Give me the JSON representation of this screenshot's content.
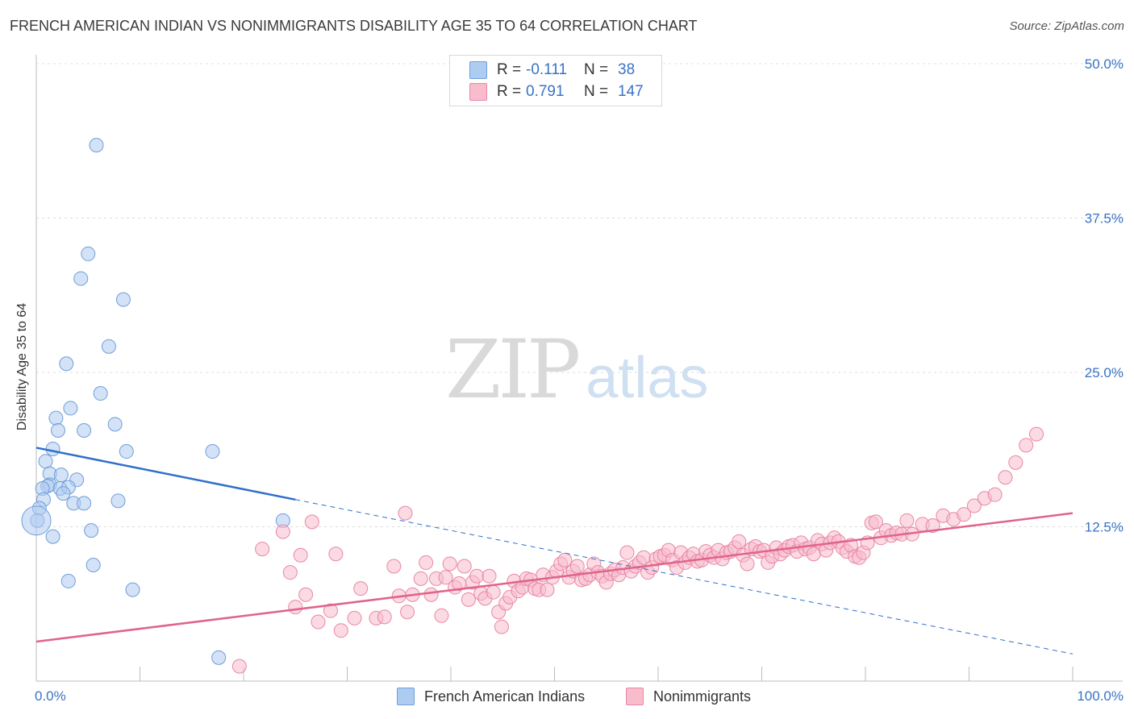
{
  "header": {
    "title": "FRENCH AMERICAN INDIAN VS NONIMMIGRANTS DISABILITY AGE 35 TO 64 CORRELATION CHART",
    "source": "Source: ZipAtlas.com"
  },
  "watermark": {
    "zip": "ZIP",
    "atlas": "atlas"
  },
  "legend": {
    "rows": [
      {
        "r_label": "R =",
        "r_value": "-0.111",
        "n_label": "N =",
        "n_value": "38",
        "color": "#aecbf0",
        "edge": "#6f9fd8"
      },
      {
        "r_label": "R =",
        "r_value": "0.791",
        "n_label": "N =",
        "n_value": "147",
        "color": "#f8bccd",
        "edge": "#e887a5"
      }
    ]
  },
  "bottom_legend": [
    {
      "label": "French American Indians",
      "color": "#aecbf0",
      "edge": "#6f9fd8"
    },
    {
      "label": "Nonimmigrants",
      "color": "#f8bccd",
      "edge": "#e887a5"
    }
  ],
  "chart_data": {
    "type": "scatter",
    "xlabel": "",
    "ylabel": "Disability Age 35 to 64",
    "xlim": [
      0,
      100
    ],
    "ylim": [
      0,
      50
    ],
    "x_tick_labels": [
      "0.0%",
      "100.0%"
    ],
    "y_ticks": [
      12.5,
      25.0,
      37.5,
      50.0
    ],
    "y_tick_labels": [
      "12.5%",
      "25.0%",
      "37.5%",
      "50.0%"
    ],
    "grid": true,
    "series": [
      {
        "name": "French American Indians",
        "color": "#aecbf0",
        "edge": "#6f9fd8",
        "trend": {
          "x0": 0,
          "y0": 18.9,
          "x1": 25,
          "y1": 14.7,
          "dash_x1": 100,
          "dash_y1": 2.2,
          "color": "#2f6fcb"
        },
        "points": [
          [
            5.8,
            43.4
          ],
          [
            5.0,
            34.6
          ],
          [
            4.3,
            32.6
          ],
          [
            8.4,
            30.9
          ],
          [
            7.0,
            27.1
          ],
          [
            2.9,
            25.7
          ],
          [
            6.2,
            23.3
          ],
          [
            3.3,
            22.1
          ],
          [
            1.9,
            21.3
          ],
          [
            7.6,
            20.8
          ],
          [
            2.1,
            20.3
          ],
          [
            4.6,
            20.3
          ],
          [
            1.6,
            18.8
          ],
          [
            8.7,
            18.6
          ],
          [
            17.0,
            18.6
          ],
          [
            0.9,
            17.8
          ],
          [
            1.3,
            16.8
          ],
          [
            2.4,
            16.7
          ],
          [
            3.9,
            16.3
          ],
          [
            1.3,
            15.9
          ],
          [
            1.1,
            15.8
          ],
          [
            0.6,
            15.6
          ],
          [
            2.3,
            15.6
          ],
          [
            3.1,
            15.7
          ],
          [
            2.6,
            15.2
          ],
          [
            0.7,
            14.7
          ],
          [
            3.6,
            14.4
          ],
          [
            4.6,
            14.4
          ],
          [
            7.9,
            14.6
          ],
          [
            0.3,
            14.0
          ],
          [
            0.1,
            13.0
          ],
          [
            23.8,
            13.0
          ],
          [
            5.3,
            12.2
          ],
          [
            1.6,
            11.7
          ],
          [
            5.5,
            9.4
          ],
          [
            3.1,
            8.1
          ],
          [
            9.3,
            7.4
          ],
          [
            17.6,
            1.9
          ]
        ]
      },
      {
        "name": "Nonimmigrants",
        "color": "#f8bccd",
        "edge": "#e887a5",
        "trend": {
          "x0": 0,
          "y0": 3.2,
          "x1": 100,
          "y1": 13.6,
          "color": "#e0648a"
        },
        "points": [
          [
            19.6,
            1.2
          ],
          [
            21.8,
            10.7
          ],
          [
            23.8,
            12.1
          ],
          [
            24.5,
            8.8
          ],
          [
            25.0,
            6.0
          ],
          [
            25.5,
            10.2
          ],
          [
            26.0,
            7.0
          ],
          [
            26.6,
            12.9
          ],
          [
            27.2,
            4.8
          ],
          [
            28.4,
            5.7
          ],
          [
            28.9,
            10.3
          ],
          [
            29.4,
            4.1
          ],
          [
            30.7,
            5.1
          ],
          [
            31.3,
            7.5
          ],
          [
            32.8,
            5.1
          ],
          [
            33.6,
            5.2
          ],
          [
            34.5,
            9.3
          ],
          [
            35.0,
            6.9
          ],
          [
            35.6,
            13.6
          ],
          [
            35.8,
            5.6
          ],
          [
            36.3,
            7.0
          ],
          [
            37.1,
            8.3
          ],
          [
            37.6,
            9.6
          ],
          [
            38.1,
            7.0
          ],
          [
            38.6,
            8.3
          ],
          [
            39.1,
            5.3
          ],
          [
            39.5,
            8.4
          ],
          [
            39.9,
            9.5
          ],
          [
            40.4,
            7.6
          ],
          [
            40.8,
            7.9
          ],
          [
            41.3,
            9.3
          ],
          [
            41.7,
            6.6
          ],
          [
            42.1,
            8.0
          ],
          [
            42.5,
            8.5
          ],
          [
            42.9,
            7.1
          ],
          [
            43.3,
            6.7
          ],
          [
            43.7,
            8.5
          ],
          [
            44.1,
            7.2
          ],
          [
            44.6,
            5.6
          ],
          [
            44.9,
            4.4
          ],
          [
            45.3,
            6.3
          ],
          [
            45.7,
            6.8
          ],
          [
            46.1,
            8.1
          ],
          [
            46.5,
            7.3
          ],
          [
            46.9,
            7.6
          ],
          [
            47.3,
            8.3
          ],
          [
            47.7,
            8.2
          ],
          [
            48.1,
            7.5
          ],
          [
            48.5,
            7.4
          ],
          [
            48.9,
            8.6
          ],
          [
            49.3,
            7.4
          ],
          [
            49.8,
            8.4
          ],
          [
            50.2,
            8.9
          ],
          [
            50.6,
            9.5
          ],
          [
            51.0,
            9.8
          ],
          [
            51.4,
            8.4
          ],
          [
            51.8,
            8.9
          ],
          [
            52.2,
            9.3
          ],
          [
            52.6,
            8.2
          ],
          [
            53.0,
            8.3
          ],
          [
            53.4,
            8.6
          ],
          [
            53.8,
            9.5
          ],
          [
            54.2,
            8.8
          ],
          [
            54.6,
            8.5
          ],
          [
            55.0,
            8.0
          ],
          [
            55.4,
            8.7
          ],
          [
            55.8,
            9.0
          ],
          [
            56.2,
            8.6
          ],
          [
            56.6,
            9.2
          ],
          [
            57.0,
            10.4
          ],
          [
            57.4,
            8.9
          ],
          [
            57.8,
            9.3
          ],
          [
            58.2,
            9.6
          ],
          [
            58.6,
            10.0
          ],
          [
            59.0,
            8.8
          ],
          [
            59.4,
            9.2
          ],
          [
            59.8,
            9.9
          ],
          [
            60.2,
            10.1
          ],
          [
            60.6,
            10.2
          ],
          [
            61.0,
            10.6
          ],
          [
            61.4,
            9.8
          ],
          [
            61.8,
            9.2
          ],
          [
            62.2,
            10.4
          ],
          [
            62.6,
            9.6
          ],
          [
            63.0,
            10.0
          ],
          [
            63.4,
            10.3
          ],
          [
            63.8,
            9.7
          ],
          [
            64.2,
            9.8
          ],
          [
            64.6,
            10.5
          ],
          [
            65.0,
            10.2
          ],
          [
            65.4,
            10.0
          ],
          [
            65.8,
            10.6
          ],
          [
            66.2,
            9.9
          ],
          [
            66.6,
            10.4
          ],
          [
            67.0,
            10.5
          ],
          [
            67.4,
            10.8
          ],
          [
            67.8,
            11.3
          ],
          [
            68.2,
            10.2
          ],
          [
            68.6,
            9.5
          ],
          [
            69.0,
            10.7
          ],
          [
            69.4,
            10.9
          ],
          [
            69.8,
            10.5
          ],
          [
            70.2,
            10.6
          ],
          [
            70.6,
            9.6
          ],
          [
            71.0,
            10.1
          ],
          [
            71.4,
            10.8
          ],
          [
            71.8,
            10.3
          ],
          [
            72.2,
            10.6
          ],
          [
            72.6,
            10.9
          ],
          [
            73.0,
            11.0
          ],
          [
            73.4,
            10.5
          ],
          [
            73.8,
            11.2
          ],
          [
            74.2,
            10.7
          ],
          [
            74.6,
            10.8
          ],
          [
            75.0,
            10.3
          ],
          [
            75.4,
            11.4
          ],
          [
            75.8,
            11.1
          ],
          [
            76.2,
            10.6
          ],
          [
            76.6,
            11.2
          ],
          [
            77.0,
            11.6
          ],
          [
            77.4,
            11.3
          ],
          [
            77.8,
            10.8
          ],
          [
            78.2,
            10.5
          ],
          [
            78.6,
            11.0
          ],
          [
            79.0,
            10.1
          ],
          [
            79.4,
            10.0
          ],
          [
            79.8,
            10.4
          ],
          [
            80.2,
            11.2
          ],
          [
            80.6,
            12.8
          ],
          [
            81.0,
            12.9
          ],
          [
            81.5,
            11.6
          ],
          [
            82.0,
            12.2
          ],
          [
            82.5,
            11.8
          ],
          [
            83.0,
            12.0
          ],
          [
            83.5,
            11.9
          ],
          [
            84.0,
            13.0
          ],
          [
            84.5,
            11.9
          ],
          [
            85.5,
            12.7
          ],
          [
            86.5,
            12.6
          ],
          [
            87.5,
            13.4
          ],
          [
            88.5,
            13.1
          ],
          [
            89.5,
            13.5
          ],
          [
            90.5,
            14.2
          ],
          [
            91.5,
            14.8
          ],
          [
            92.5,
            15.1
          ],
          [
            93.5,
            16.5
          ],
          [
            94.5,
            17.7
          ],
          [
            95.5,
            19.1
          ],
          [
            96.5,
            20.0
          ]
        ]
      }
    ]
  }
}
